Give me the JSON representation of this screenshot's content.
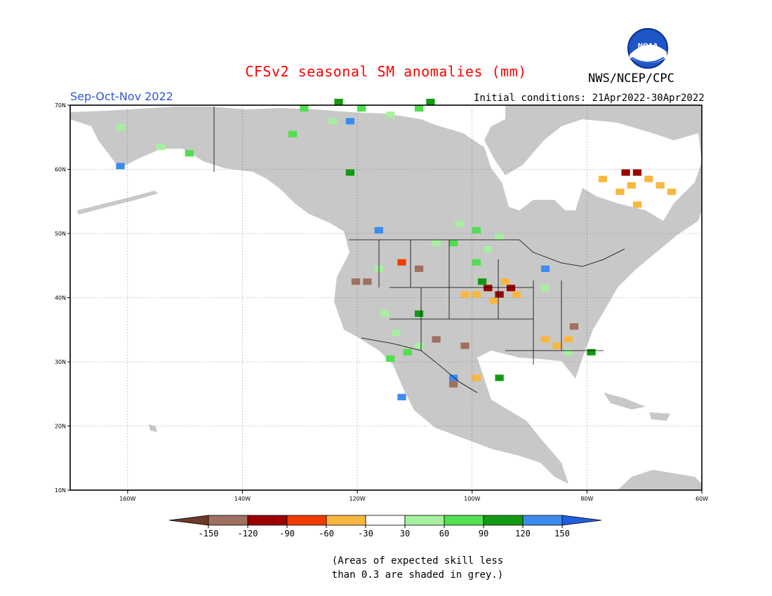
{
  "title": "CFSv2 seasonal SM anomalies (mm)",
  "season": "Sep-Oct-Nov 2022",
  "org": "NWS/NCEP/CPC",
  "logo_text": "NOAA",
  "initial_conditions": "Initial conditions: 21Apr2022-30Apr2022",
  "note": {
    "line1": "(Areas of expected skill less",
    "line2": "than 0.3 are shaded in grey.)"
  },
  "axes": {
    "lon_labels": [
      "160W",
      "140W",
      "120W",
      "100W",
      "80W",
      "60W"
    ],
    "lon_values": [
      -160,
      -140,
      -120,
      -100,
      -80,
      -60
    ],
    "lat_labels": [
      "70N",
      "60N",
      "50N",
      "40N",
      "30N",
      "20N",
      "10N"
    ],
    "lat_values": [
      70,
      60,
      50,
      40,
      30,
      20,
      10
    ],
    "lon_range": [
      -170,
      -60
    ],
    "lat_range": [
      10,
      70
    ],
    "grid": "dotted"
  },
  "colorbar": {
    "labels": [
      "-150",
      "-120",
      "-90",
      "-60",
      "-30",
      "30",
      "60",
      "90",
      "120",
      "150"
    ],
    "colors": [
      "#6b3a2a",
      "#a07060",
      "#9b0000",
      "#f03c00",
      "#f8b840",
      "#ffffff",
      "#a6f0a0",
      "#50e050",
      "#139a13",
      "#3c8cf0",
      "#2060e0"
    ]
  },
  "colors": {
    "land_grey": "#c8c8c8",
    "ocean": "#ffffff",
    "frame": "#000000"
  },
  "chart_data": {
    "type": "heatmap",
    "variable": "soil moisture anomaly (mm)",
    "cells": [
      {
        "lon": -98,
        "lat": 41,
        "v": -95
      },
      {
        "lon": -96,
        "lat": 40,
        "v": -95
      },
      {
        "lon": -94,
        "lat": 41,
        "v": -95
      },
      {
        "lon": -100,
        "lat": 40,
        "v": -45
      },
      {
        "lon": -93,
        "lat": 40,
        "v": -45
      },
      {
        "lon": -97,
        "lat": 39,
        "v": -45
      },
      {
        "lon": -102,
        "lat": 40,
        "v": -45
      },
      {
        "lon": -95,
        "lat": 42,
        "v": -45
      },
      {
        "lon": -119,
        "lat": 42,
        "v": -125
      },
      {
        "lon": -121,
        "lat": 42,
        "v": -125
      },
      {
        "lon": -110,
        "lat": 44,
        "v": -125
      },
      {
        "lon": -113,
        "lat": 45,
        "v": -70
      },
      {
        "lon": -74,
        "lat": 59,
        "v": -95
      },
      {
        "lon": -72,
        "lat": 59,
        "v": -95
      },
      {
        "lon": -70,
        "lat": 58,
        "v": -45
      },
      {
        "lon": -73,
        "lat": 57,
        "v": -45
      },
      {
        "lon": -68,
        "lat": 57,
        "v": -45
      },
      {
        "lon": -75,
        "lat": 56,
        "v": -45
      },
      {
        "lon": -66,
        "lat": 56,
        "v": -45
      },
      {
        "lon": -72,
        "lat": 54,
        "v": -45
      },
      {
        "lon": -78,
        "lat": 58,
        "v": -45
      },
      {
        "lon": -84,
        "lat": 33,
        "v": -45
      },
      {
        "lon": -86,
        "lat": 32,
        "v": -45
      },
      {
        "lon": -88,
        "lat": 33,
        "v": -45
      },
      {
        "lon": -83,
        "lat": 35,
        "v": -125
      },
      {
        "lon": -102,
        "lat": 32,
        "v": -135
      },
      {
        "lon": -100,
        "lat": 27,
        "v": -45
      },
      {
        "lon": -104,
        "lat": 26,
        "v": -135
      },
      {
        "lon": -107,
        "lat": 33,
        "v": -125
      },
      {
        "lon": -100,
        "lat": 45,
        "v": 75
      },
      {
        "lon": -98,
        "lat": 47,
        "v": 45
      },
      {
        "lon": -104,
        "lat": 48,
        "v": 75
      },
      {
        "lon": -100,
        "lat": 50,
        "v": 75
      },
      {
        "lon": -103,
        "lat": 51,
        "v": 45
      },
      {
        "lon": -96,
        "lat": 49,
        "v": 45
      },
      {
        "lon": -107,
        "lat": 48,
        "v": 45
      },
      {
        "lon": -99,
        "lat": 42,
        "v": 105
      },
      {
        "lon": -80,
        "lat": 31,
        "v": 105
      },
      {
        "lon": -84,
        "lat": 31,
        "v": 45
      },
      {
        "lon": -112,
        "lat": 31,
        "v": 75
      },
      {
        "lon": -110,
        "lat": 32,
        "v": 45
      },
      {
        "lon": -113,
        "lat": 24,
        "v": 135
      },
      {
        "lon": -115,
        "lat": 30,
        "v": 75
      },
      {
        "lon": -116,
        "lat": 37,
        "v": 45
      },
      {
        "lon": -117,
        "lat": 44,
        "v": 45
      },
      {
        "lon": -114,
        "lat": 34,
        "v": 45
      },
      {
        "lon": -130,
        "lat": 69,
        "v": 75
      },
      {
        "lon": -120,
        "lat": 69,
        "v": 75
      },
      {
        "lon": -115,
        "lat": 68,
        "v": 45
      },
      {
        "lon": -125,
        "lat": 67,
        "v": 45
      },
      {
        "lon": -110,
        "lat": 69,
        "v": 75
      },
      {
        "lon": -108,
        "lat": 70,
        "v": 105
      },
      {
        "lon": -124,
        "lat": 70,
        "v": 105
      },
      {
        "lon": -132,
        "lat": 65,
        "v": 75
      },
      {
        "lon": -150,
        "lat": 62,
        "v": 75
      },
      {
        "lon": -155,
        "lat": 63,
        "v": 45
      },
      {
        "lon": -162,
        "lat": 66,
        "v": 45
      },
      {
        "lon": -122,
        "lat": 67,
        "v": 135
      },
      {
        "lon": -162,
        "lat": 60,
        "v": 135
      },
      {
        "lon": -88,
        "lat": 44,
        "v": 135
      },
      {
        "lon": -117,
        "lat": 50,
        "v": 135
      },
      {
        "lon": -104,
        "lat": 27,
        "v": 135
      },
      {
        "lon": -96,
        "lat": 27,
        "v": 105
      },
      {
        "lon": -110,
        "lat": 37,
        "v": 105
      },
      {
        "lon": -122,
        "lat": 59,
        "v": 105
      },
      {
        "lon": -88,
        "lat": 41,
        "v": 45
      }
    ]
  }
}
